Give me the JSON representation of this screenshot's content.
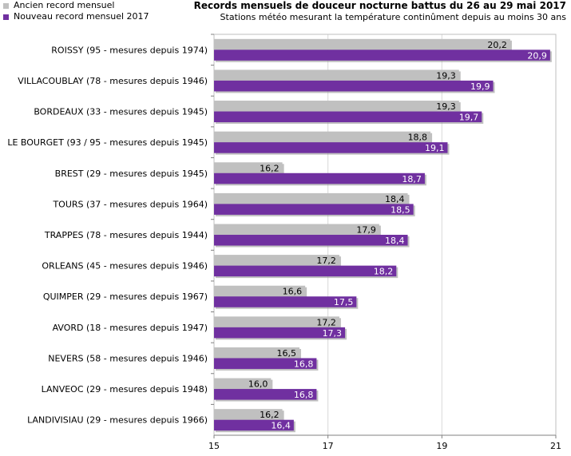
{
  "chart_data": {
    "type": "bar",
    "orientation": "horizontal",
    "title": "Records mensuels de douceur nocturne battus du 26 au 29 mai 2017",
    "subtitle": "Stations météo mesurant la température continûment depuis au moins 30 ans",
    "categories": [
      "ROISSY (95 - mesures depuis 1974)",
      "VILLACOUBLAY (78 - mesures depuis 1946)",
      "BORDEAUX (33 - mesures depuis 1945)",
      "LE BOURGET (93 / 95 - mesures depuis 1945)",
      "BREST (29 - mesures depuis 1945)",
      "TOURS (37 - mesures depuis 1964)",
      "TRAPPES (78 - mesures depuis 1944)",
      "ORLEANS (45 - mesures depuis 1946)",
      "QUIMPER (29 - mesures depuis 1967)",
      "AVORD (18 - mesures depuis 1947)",
      "NEVERS (58 - mesures depuis 1946)",
      "LANVEOC (29 - mesures depuis 1948)",
      "LANDIVISIAU (29 - mesures depuis 1966)"
    ],
    "series": [
      {
        "name": "Ancien record mensuel",
        "color": "#c0c0c0",
        "values": [
          20.2,
          19.3,
          19.3,
          18.8,
          16.2,
          18.4,
          17.9,
          17.2,
          16.6,
          17.2,
          16.5,
          16.0,
          16.2
        ],
        "labels": [
          "20,2",
          "19,3",
          "19,3",
          "18,8",
          "16,2",
          "18,4",
          "17,9",
          "17,2",
          "16,6",
          "17,2",
          "16,5",
          "16,0",
          "16,2"
        ]
      },
      {
        "name": "Nouveau record mensuel 2017",
        "color": "#7030a0",
        "values": [
          20.9,
          19.9,
          19.7,
          19.1,
          18.7,
          18.5,
          18.4,
          18.2,
          17.5,
          17.3,
          16.8,
          16.8,
          16.4
        ],
        "labels": [
          "20,9",
          "19,9",
          "19,7",
          "19,1",
          "18,7",
          "18,5",
          "18,4",
          "18,2",
          "17,5",
          "17,3",
          "16,8",
          "16,8",
          "16,4"
        ]
      }
    ],
    "xlim": [
      15,
      21
    ],
    "xticks": [
      15,
      17,
      19,
      21
    ],
    "xtick_labels": [
      "15",
      "17",
      "19",
      "21"
    ],
    "grid": "vertical",
    "legend": "top-left"
  }
}
